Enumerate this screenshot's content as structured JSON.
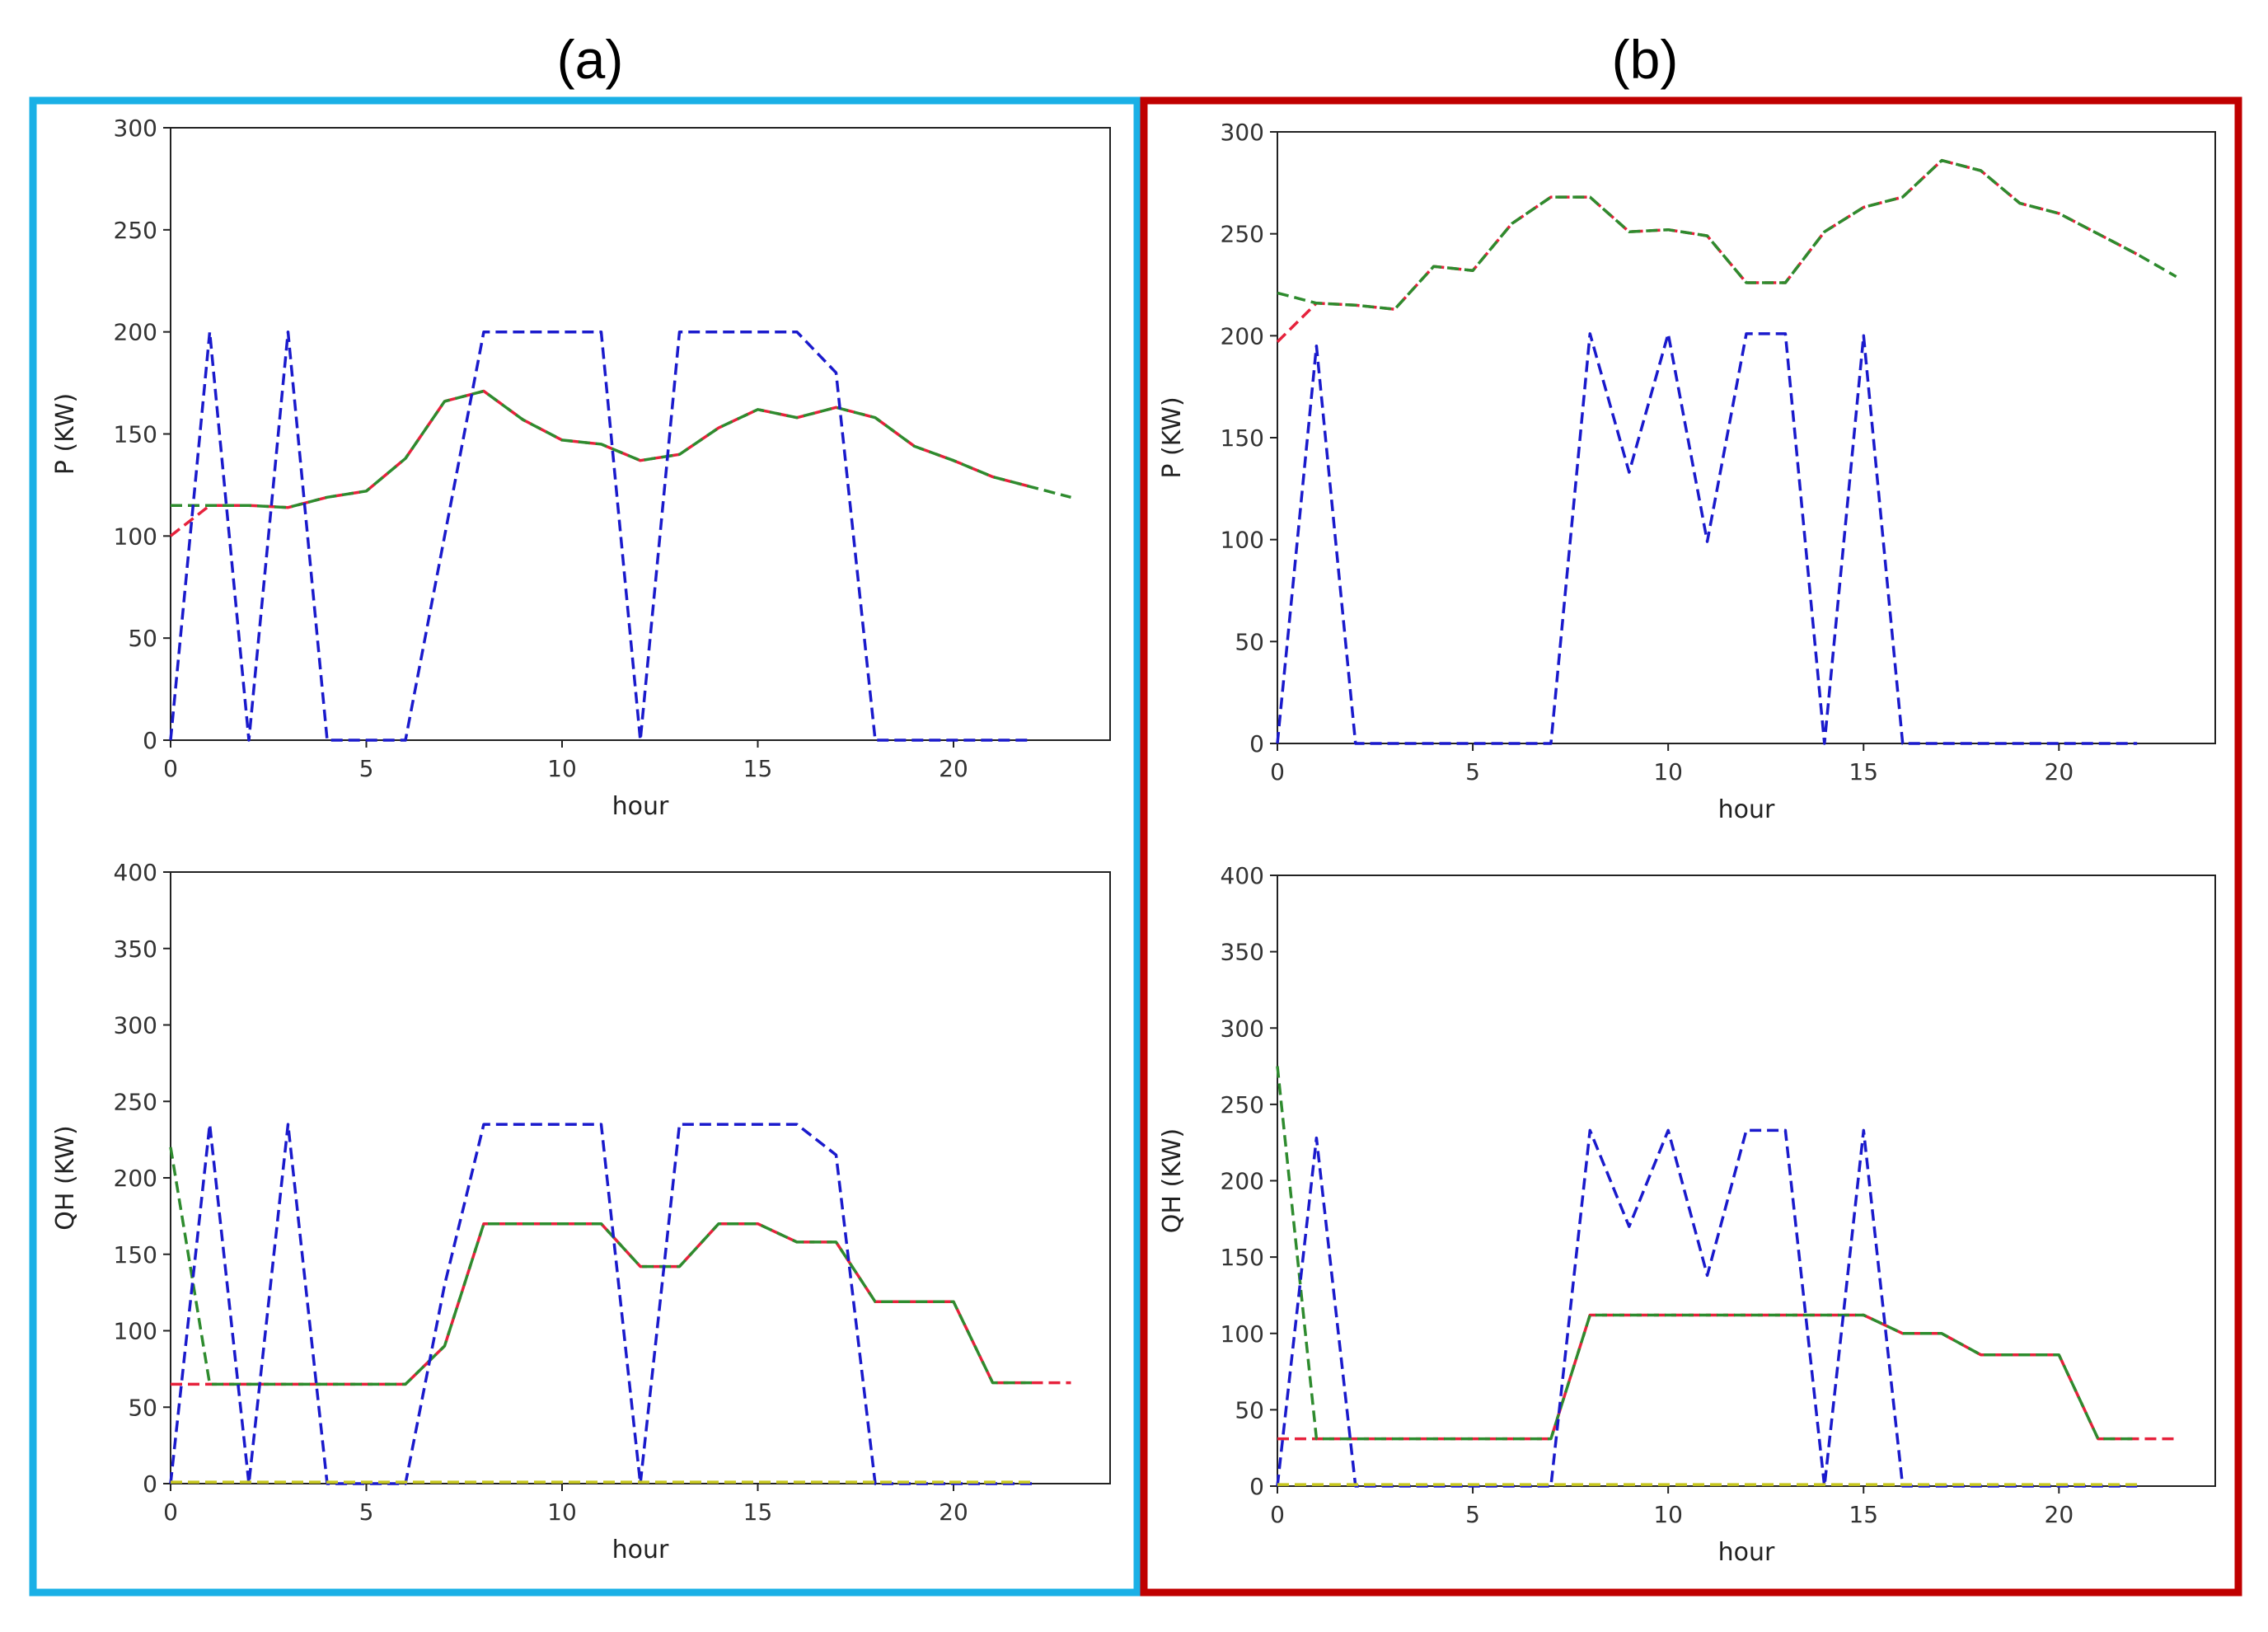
{
  "panels": [
    {
      "label": "(a)",
      "frame_color": "#1ab0e6"
    },
    {
      "label": "(b)",
      "frame_color": "#c00000"
    }
  ],
  "chart_data": [
    {
      "id": "a-top",
      "type": "line",
      "panel": "(a)",
      "xlabel": "hour",
      "ylabel": "P (KW)",
      "xlim": [
        0,
        24
      ],
      "ylim": [
        0,
        300
      ],
      "xticks": [
        0,
        5,
        10,
        15,
        20
      ],
      "yticks": [
        0,
        50,
        100,
        150,
        200,
        250,
        300
      ],
      "series": [
        {
          "name": "red",
          "color": "#e6223c",
          "style": "dashed",
          "x": [
            0,
            1,
            2,
            3,
            4,
            5,
            6,
            7,
            8,
            9,
            10,
            11,
            12,
            13,
            14,
            15,
            16,
            17,
            18,
            19,
            20,
            21,
            22
          ],
          "y": [
            100,
            115,
            115,
            114,
            119,
            122,
            138,
            166,
            171,
            157,
            147,
            145,
            137,
            140,
            153,
            162,
            158,
            163,
            158,
            144,
            137,
            129,
            124
          ]
        },
        {
          "name": "green",
          "color": "#2e8b2e",
          "style": "dashed",
          "x": [
            0,
            1,
            2,
            3,
            4,
            5,
            6,
            7,
            8,
            9,
            10,
            11,
            12,
            13,
            14,
            15,
            16,
            17,
            18,
            19,
            20,
            21,
            22,
            23
          ],
          "y": [
            115,
            115,
            115,
            114,
            119,
            122,
            138,
            166,
            171,
            157,
            147,
            145,
            137,
            140,
            153,
            162,
            158,
            163,
            158,
            144,
            137,
            129,
            124,
            119
          ]
        },
        {
          "name": "blue",
          "color": "#1a1acc",
          "style": "dashed",
          "x": [
            0,
            1,
            2,
            3,
            4,
            5,
            6,
            7,
            8,
            9,
            10,
            11,
            12,
            13,
            14,
            15,
            16,
            17,
            18,
            19,
            20,
            21,
            22
          ],
          "y": [
            0,
            200,
            0,
            200,
            0,
            0,
            0,
            100,
            200,
            200,
            200,
            200,
            0,
            200,
            200,
            200,
            200,
            180,
            0,
            0,
            0,
            0,
            0
          ]
        }
      ]
    },
    {
      "id": "a-bottom",
      "type": "line",
      "panel": "(a)",
      "xlabel": "hour",
      "ylabel": "QH (KW)",
      "xlim": [
        0,
        24
      ],
      "ylim": [
        0,
        400
      ],
      "xticks": [
        0,
        5,
        10,
        15,
        20
      ],
      "yticks": [
        0,
        50,
        100,
        150,
        200,
        250,
        300,
        350,
        400
      ],
      "series": [
        {
          "name": "red",
          "color": "#e6223c",
          "style": "dashed",
          "x": [
            0,
            1,
            2,
            3,
            4,
            5,
            6,
            7,
            8,
            9,
            10,
            11,
            12,
            13,
            14,
            15,
            16,
            17,
            18,
            19,
            20,
            21,
            22,
            23
          ],
          "y": [
            65,
            65,
            65,
            65,
            65,
            65,
            65,
            90,
            170,
            170,
            170,
            170,
            142,
            142,
            170,
            170,
            158,
            158,
            119,
            119,
            119,
            66,
            66,
            66
          ]
        },
        {
          "name": "green",
          "color": "#2e8b2e",
          "style": "dashed",
          "x": [
            0,
            1,
            2,
            3,
            4,
            5,
            6,
            7,
            8,
            9,
            10,
            11,
            12,
            13,
            14,
            15,
            16,
            17,
            18,
            19,
            20,
            21,
            22
          ],
          "y": [
            220,
            65,
            65,
            65,
            65,
            65,
            65,
            90,
            170,
            170,
            170,
            170,
            142,
            142,
            170,
            170,
            158,
            158,
            119,
            119,
            119,
            66,
            66
          ]
        },
        {
          "name": "blue",
          "color": "#1a1acc",
          "style": "dashed",
          "x": [
            0,
            1,
            2,
            3,
            4,
            5,
            6,
            7,
            8,
            9,
            10,
            11,
            12,
            13,
            14,
            15,
            16,
            17,
            18,
            19,
            20,
            21,
            22
          ],
          "y": [
            0,
            235,
            0,
            235,
            0,
            0,
            0,
            130,
            235,
            235,
            235,
            235,
            0,
            235,
            235,
            235,
            235,
            215,
            0,
            0,
            0,
            0,
            0
          ]
        },
        {
          "name": "yellow",
          "color": "#c8c820",
          "style": "dashed",
          "x": [
            0,
            22
          ],
          "y": [
            1,
            1
          ]
        }
      ]
    },
    {
      "id": "b-top",
      "type": "line",
      "panel": "(b)",
      "xlabel": "hour",
      "ylabel": "P (KW)",
      "xlim": [
        0,
        24
      ],
      "ylim": [
        0,
        300
      ],
      "xticks": [
        0,
        5,
        10,
        15,
        20
      ],
      "yticks": [
        0,
        50,
        100,
        150,
        200,
        250,
        300
      ],
      "series": [
        {
          "name": "red",
          "color": "#e6223c",
          "style": "dashed",
          "x": [
            0,
            1,
            2,
            3,
            4,
            5,
            6,
            7,
            8,
            9,
            10,
            11,
            12,
            13,
            14,
            15,
            16,
            17,
            18,
            19,
            20,
            21,
            22
          ],
          "y": [
            197,
            216,
            215,
            213,
            234,
            232,
            255,
            268,
            268,
            251,
            252,
            249,
            226,
            226,
            251,
            263,
            268,
            286,
            281,
            265,
            260,
            250,
            240
          ]
        },
        {
          "name": "green",
          "color": "#2e8b2e",
          "style": "dashed",
          "x": [
            0,
            1,
            2,
            3,
            4,
            5,
            6,
            7,
            8,
            9,
            10,
            11,
            12,
            13,
            14,
            15,
            16,
            17,
            18,
            19,
            20,
            21,
            22,
            23
          ],
          "y": [
            221,
            216,
            215,
            213,
            234,
            232,
            255,
            268,
            268,
            251,
            252,
            249,
            226,
            226,
            251,
            263,
            268,
            286,
            281,
            265,
            260,
            250,
            240,
            229
          ]
        },
        {
          "name": "blue",
          "color": "#1a1acc",
          "style": "dashed",
          "x": [
            0,
            1,
            2,
            3,
            4,
            5,
            6,
            7,
            8,
            9,
            10,
            11,
            12,
            13,
            14,
            15,
            16,
            17,
            18,
            19,
            20,
            21,
            22
          ],
          "y": [
            0,
            195,
            0,
            0,
            0,
            0,
            0,
            0,
            201,
            133,
            201,
            99,
            201,
            201,
            0,
            200,
            0,
            0,
            0,
            0,
            0,
            0,
            0
          ]
        }
      ]
    },
    {
      "id": "b-bottom",
      "type": "line",
      "panel": "(b)",
      "xlabel": "hour",
      "ylabel": "QH (KW)",
      "xlim": [
        0,
        24
      ],
      "ylim": [
        0,
        400
      ],
      "xticks": [
        0,
        5,
        10,
        15,
        20
      ],
      "yticks": [
        0,
        50,
        100,
        150,
        200,
        250,
        300,
        350,
        400
      ],
      "series": [
        {
          "name": "red",
          "color": "#e6223c",
          "style": "dashed",
          "x": [
            0,
            1,
            2,
            3,
            4,
            5,
            6,
            7,
            8,
            9,
            10,
            11,
            12,
            13,
            14,
            15,
            16,
            17,
            18,
            19,
            20,
            21,
            22,
            23
          ],
          "y": [
            31,
            31,
            31,
            31,
            31,
            31,
            31,
            31,
            112,
            112,
            112,
            112,
            112,
            112,
            112,
            112,
            100,
            100,
            86,
            86,
            86,
            31,
            31,
            31
          ]
        },
        {
          "name": "green",
          "color": "#2e8b2e",
          "style": "dashed",
          "x": [
            0,
            1,
            2,
            3,
            4,
            5,
            6,
            7,
            8,
            9,
            10,
            11,
            12,
            13,
            14,
            15,
            16,
            17,
            18,
            19,
            20,
            21,
            22
          ],
          "y": [
            275,
            31,
            31,
            31,
            31,
            31,
            31,
            31,
            112,
            112,
            112,
            112,
            112,
            112,
            112,
            112,
            100,
            100,
            86,
            86,
            86,
            31,
            31
          ]
        },
        {
          "name": "blue",
          "color": "#1a1acc",
          "style": "dashed",
          "x": [
            0,
            1,
            2,
            3,
            4,
            5,
            6,
            7,
            8,
            9,
            10,
            11,
            12,
            13,
            14,
            15,
            16,
            17,
            18,
            19,
            20,
            21,
            22
          ],
          "y": [
            0,
            228,
            0,
            0,
            0,
            0,
            0,
            0,
            233,
            170,
            233,
            138,
            233,
            233,
            0,
            233,
            0,
            0,
            0,
            0,
            0,
            0,
            0
          ]
        },
        {
          "name": "yellow",
          "color": "#c8c820",
          "style": "dashed",
          "x": [
            0,
            22
          ],
          "y": [
            1,
            1
          ]
        }
      ]
    }
  ]
}
